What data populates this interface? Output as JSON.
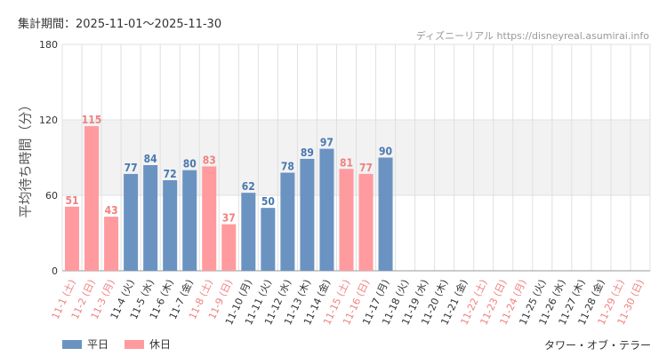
{
  "header": {
    "period": "集計期間：2025-11-01～2025-11-30",
    "source": "ディズニーリアル https://disneyreal.asumirai.info"
  },
  "footer": {
    "attraction": "タワー・オブ・テラー"
  },
  "colors": {
    "weekday": "#6a93c2",
    "holiday": "#ff9a9e",
    "weekday_text": "#4a78b0",
    "holiday_text": "#f08080",
    "band": "#f2f2f2",
    "grid": "#e0e0e0"
  },
  "chart_data": {
    "type": "bar",
    "title": "",
    "xlabel": "",
    "ylabel": "平均待ち時間（分）",
    "ylim": [
      0,
      180
    ],
    "yticks": [
      "0",
      "60",
      "120",
      "180"
    ],
    "categories": [
      "11-1 (土)",
      "11-2 (日)",
      "11-3 (月)",
      "11-4 (火)",
      "11-5 (水)",
      "11-6 (木)",
      "11-7 (金)",
      "11-8 (土)",
      "11-9 (日)",
      "11-10 (月)",
      "11-11 (火)",
      "11-12 (水)",
      "11-13 (木)",
      "11-14 (金)",
      "11-15 (土)",
      "11-16 (日)",
      "11-17 (月)",
      "11-18 (火)",
      "11-19 (水)",
      "11-20 (木)",
      "11-21 (金)",
      "11-22 (土)",
      "11-23 (日)",
      "11-24 (月)",
      "11-25 (火)",
      "11-26 (水)",
      "11-27 (木)",
      "11-28 (金)",
      "11-29 (土)",
      "11-30 (日)"
    ],
    "values": [
      51,
      115,
      43,
      77,
      84,
      72,
      80,
      83,
      37,
      62,
      50,
      78,
      89,
      97,
      81,
      77,
      90,
      null,
      null,
      null,
      null,
      null,
      null,
      null,
      null,
      null,
      null,
      null,
      null,
      null
    ],
    "value_labels": [
      "51",
      "115",
      "43",
      "77",
      "84",
      "72",
      "80",
      "83",
      "37",
      "62",
      "50",
      "78",
      "89",
      "97",
      "81",
      "77",
      "90",
      "",
      "",
      "",
      "",
      "",
      "",
      "",
      "",
      "",
      "",
      "",
      "",
      ""
    ],
    "day_type": [
      "holiday",
      "holiday",
      "holiday",
      "weekday",
      "weekday",
      "weekday",
      "weekday",
      "holiday",
      "holiday",
      "weekday",
      "weekday",
      "weekday",
      "weekday",
      "weekday",
      "holiday",
      "holiday",
      "weekday",
      "weekday",
      "weekday",
      "weekday",
      "weekday",
      "holiday",
      "holiday",
      "holiday",
      "weekday",
      "weekday",
      "weekday",
      "weekday",
      "holiday",
      "holiday"
    ],
    "legend": [
      {
        "key": "weekday",
        "label": "平日"
      },
      {
        "key": "holiday",
        "label": "休日"
      }
    ],
    "legend_position": "bottom-left"
  }
}
